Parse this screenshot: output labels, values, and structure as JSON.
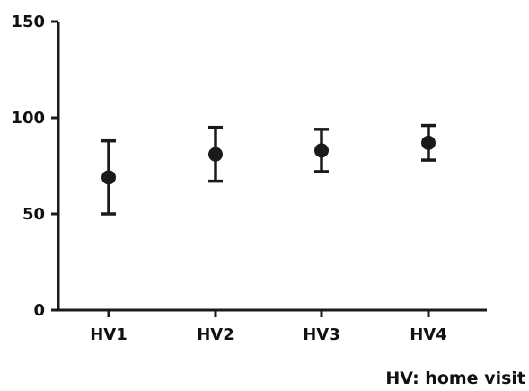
{
  "chart_data": {
    "type": "scatter",
    "categories": [
      "HV1",
      "HV2",
      "HV3",
      "HV4"
    ],
    "points": [
      {
        "category": "HV1",
        "value": 69,
        "low": 50,
        "high": 88
      },
      {
        "category": "HV2",
        "value": 81,
        "low": 67,
        "high": 95
      },
      {
        "category": "HV3",
        "value": 83,
        "low": 72,
        "high": 94
      },
      {
        "category": "HV4",
        "value": 87,
        "low": 78,
        "high": 96
      }
    ],
    "error_bars": true,
    "ylim": [
      0,
      150
    ],
    "yticks": [
      0,
      50,
      100,
      150
    ],
    "grid": false,
    "legend": "none",
    "color": "#1a1a1a"
  },
  "footnote": "HV: home visit"
}
